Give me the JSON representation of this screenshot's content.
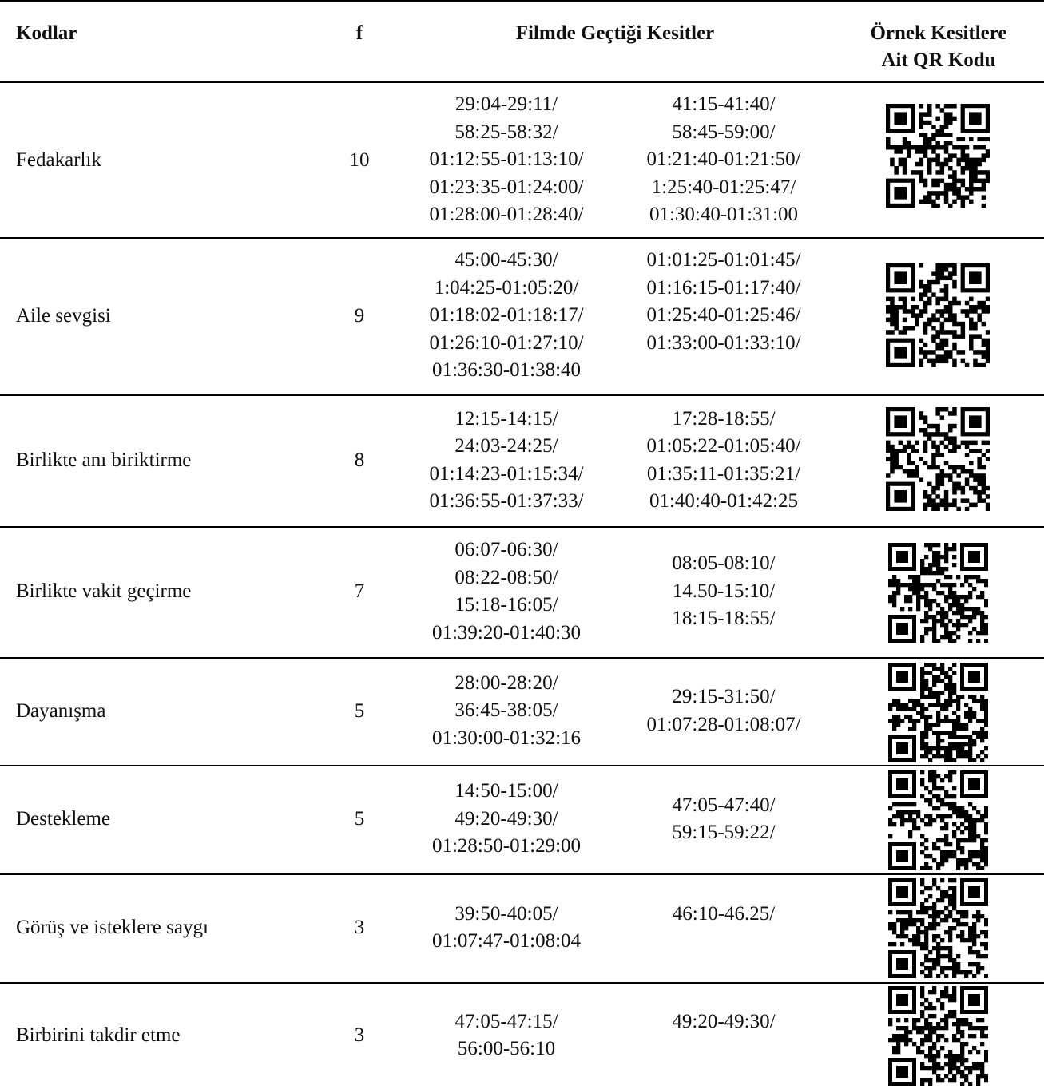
{
  "header": {
    "codes": "Kodlar",
    "freq": "f",
    "sections": "Filmde Geçtiği Kesitler",
    "qr_line1": "Örnek Kesitlere",
    "qr_line2": "Ait QR Kodu"
  },
  "rows": [
    {
      "code": "Fedakarlık",
      "f": "10",
      "col1": [
        "29:04-29:11/",
        "58:25-58:32/",
        "01:12:55-01:13:10/",
        "01:23:35-01:24:00/",
        "01:28:00-01:28:40/"
      ],
      "col2": [
        "41:15-41:40/",
        "58:45-59:00/",
        "01:21:40-01:21:50/",
        "1:25:40-01:25:47/",
        "01:30:40-01:31:00"
      ],
      "qr_icon": "qr-code-icon"
    },
    {
      "code": "Aile sevgisi",
      "f": "9",
      "col1": [
        "45:00-45:30/",
        "1:04:25-01:05:20/",
        "01:18:02-01:18:17/",
        "01:26:10-01:27:10/",
        "01:36:30-01:38:40"
      ],
      "col2": [
        "01:01:25-01:01:45/",
        "01:16:15-01:17:40/",
        "01:25:40-01:25:46/",
        "01:33:00-01:33:10/"
      ],
      "qr_icon": "qr-code-icon"
    },
    {
      "code": "Birlikte anı biriktirme",
      "f": "8",
      "col1": [
        "12:15-14:15/",
        "24:03-24:25/",
        "01:14:23-01:15:34/",
        "01:36:55-01:37:33/"
      ],
      "col2": [
        "17:28-18:55/",
        "01:05:22-01:05:40/",
        "01:35:11-01:35:21/",
        "01:40:40-01:42:25"
      ],
      "qr_icon": "qr-code-icon"
    },
    {
      "code": "Birlikte vakit geçirme",
      "f": "7",
      "col1": [
        "06:07-06:30/",
        "08:22-08:50/",
        "15:18-16:05/",
        "01:39:20-01:40:30"
      ],
      "col2": [
        "08:05-08:10/",
        "14.50-15:10/",
        "18:15-18:55/"
      ],
      "qr_icon": "qr-code-icon"
    },
    {
      "code": "Dayanışma",
      "f": "5",
      "col1": [
        "28:00-28:20/",
        "36:45-38:05/",
        "01:30:00-01:32:16"
      ],
      "col2": [
        "29:15-31:50/",
        "01:07:28-01:08:07/"
      ],
      "qr_icon": "qr-code-icon"
    },
    {
      "code": "Destekleme",
      "f": "5",
      "col1": [
        "14:50-15:00/",
        "49:20-49:30/",
        "01:28:50-01:29:00"
      ],
      "col2": [
        "47:05-47:40/",
        "59:15-59:22/"
      ],
      "qr_icon": "qr-code-icon"
    },
    {
      "code": "Görüş ve isteklere saygı",
      "f": "3",
      "col1": [
        "39:50-40:05/",
        "01:07:47-01:08:04"
      ],
      "col2": [
        "46:10-46.25/"
      ],
      "qr_icon": "qr-code-icon"
    },
    {
      "code": "Birbirini takdir etme",
      "f": "3",
      "col1": [
        "47:05-47:15/",
        "56:00-56:10"
      ],
      "col2": [
        "49:20-49:30/"
      ],
      "qr_icon": "qr-code-icon"
    }
  ]
}
